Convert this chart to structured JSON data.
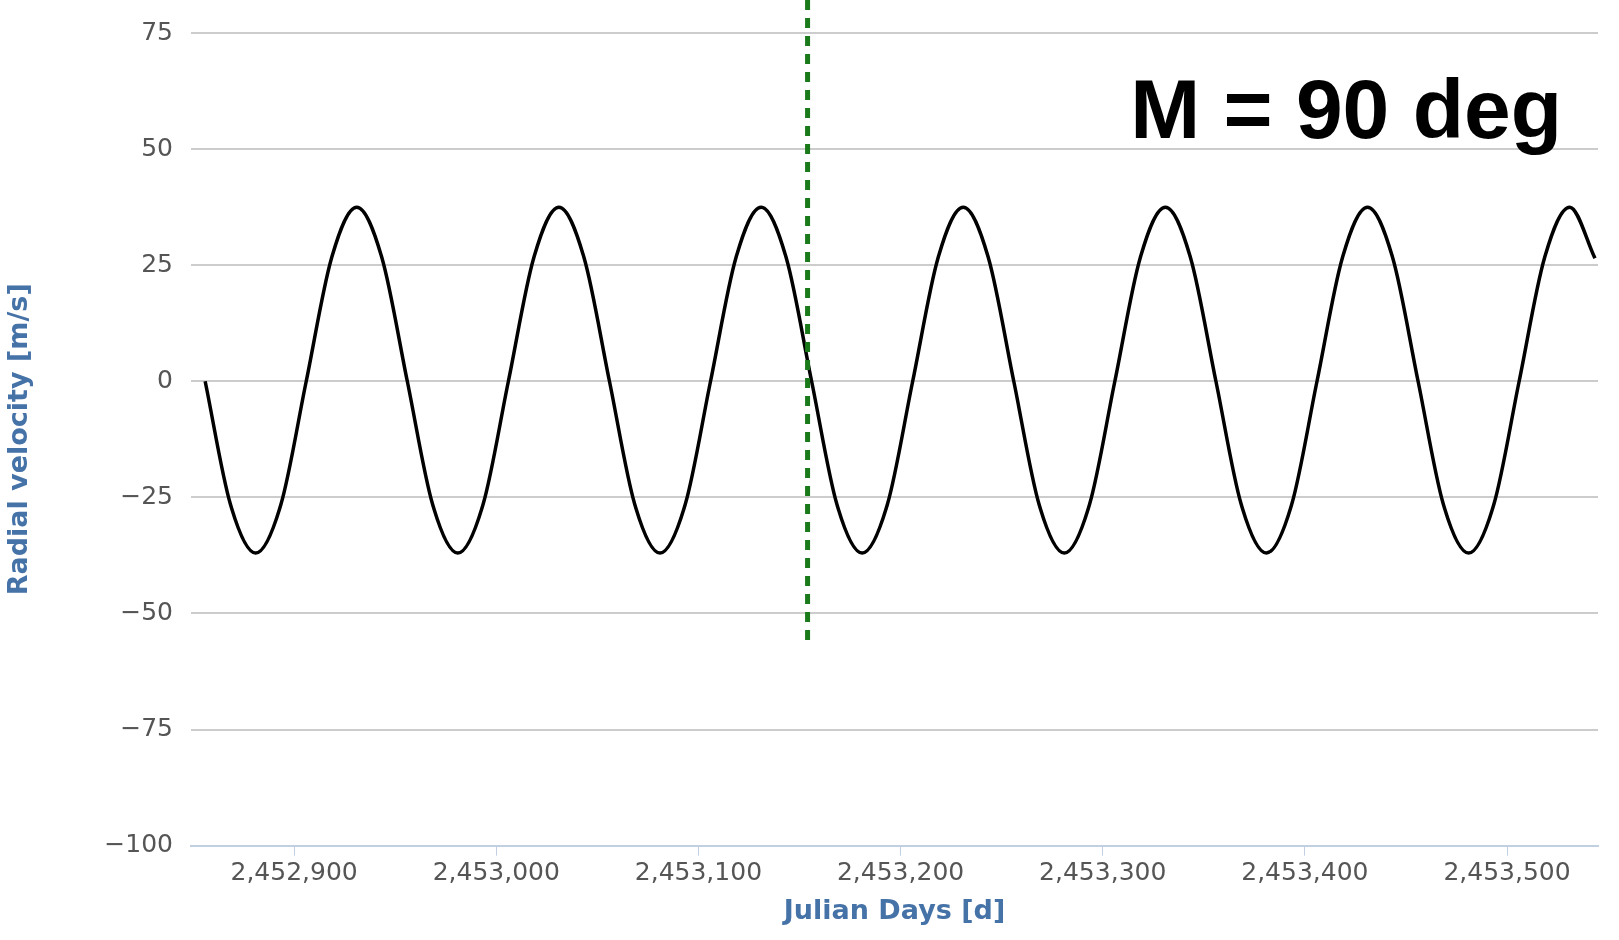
{
  "chart_data": {
    "type": "line",
    "xlabel": "Julian Days [d]",
    "ylabel": "Radial velocity [m/s]",
    "annotations": [
      "M = 90 deg"
    ],
    "series": [
      {
        "color": "#000000",
        "x": [
          2452856,
          2452868.5,
          2452881,
          2452893.5,
          2452906,
          2452918.5,
          2452931,
          2452943.5,
          2452956,
          2452968.5,
          2452981,
          2452993.5,
          2453006,
          2453018.5,
          2453031,
          2453043.5,
          2453056,
          2453068.5,
          2453081,
          2453093.5,
          2453106,
          2453118.5,
          2453131,
          2453143.5,
          2453156,
          2453168.5,
          2453181,
          2453193.5,
          2453206,
          2453218.5,
          2453231,
          2453243.5,
          2453256,
          2453268.5,
          2453281,
          2453293.5,
          2453306,
          2453318.5,
          2453331,
          2453343.5,
          2453356,
          2453368.5,
          2453381,
          2453393.5,
          2453406,
          2453418.5,
          2453431,
          2453443.5,
          2453456,
          2453468.5,
          2453481,
          2453493.5,
          2453506,
          2453518.5,
          2453531,
          2453543.5
        ],
        "values": [
          0,
          -26.5,
          -37,
          -26.5,
          0,
          26.5,
          37.5,
          26.5,
          0,
          -26.5,
          -37,
          -26.5,
          0,
          26.5,
          37.5,
          26.5,
          0,
          -26.5,
          -37,
          -26.5,
          0,
          26.5,
          37.5,
          26.5,
          0,
          -26.5,
          -37,
          -26.5,
          0,
          26.5,
          37.5,
          26.5,
          0,
          -26.5,
          -37,
          -26.5,
          0,
          26.5,
          37.5,
          26.5,
          0,
          -26.5,
          -37,
          -26.5,
          0,
          26.5,
          37.5,
          26.5,
          0,
          -26.5,
          -37,
          -26.5,
          0,
          26.5,
          37.5,
          26.5
        ]
      }
    ],
    "xlim": [
      2452849,
      2453545
    ],
    "xticks": [
      {
        "value": 2452900,
        "label": "2,452,900"
      },
      {
        "value": 2453000,
        "label": "2,453,000"
      },
      {
        "value": 2453100,
        "label": "2,453,100"
      },
      {
        "value": 2453200,
        "label": "2,453,200"
      },
      {
        "value": 2453300,
        "label": "2,453,300"
      },
      {
        "value": 2453400,
        "label": "2,453,400"
      },
      {
        "value": 2453500,
        "label": "2,453,500"
      }
    ],
    "ylim": [
      -100,
      75
    ],
    "yticks": [
      75,
      50,
      25,
      0,
      {
        "value": -25,
        "label": "−25"
      },
      {
        "value": -50,
        "label": "−50"
      },
      {
        "value": -75,
        "label": "−75"
      },
      {
        "value": -100,
        "label": "−100"
      }
    ],
    "ref_lines": [
      {
        "axis": "x",
        "value": 2453154,
        "color": "#1a7a1a",
        "line_style": "dashed"
      }
    ],
    "grid": "y",
    "legend": false,
    "marker": "none",
    "line_style": "solid"
  }
}
